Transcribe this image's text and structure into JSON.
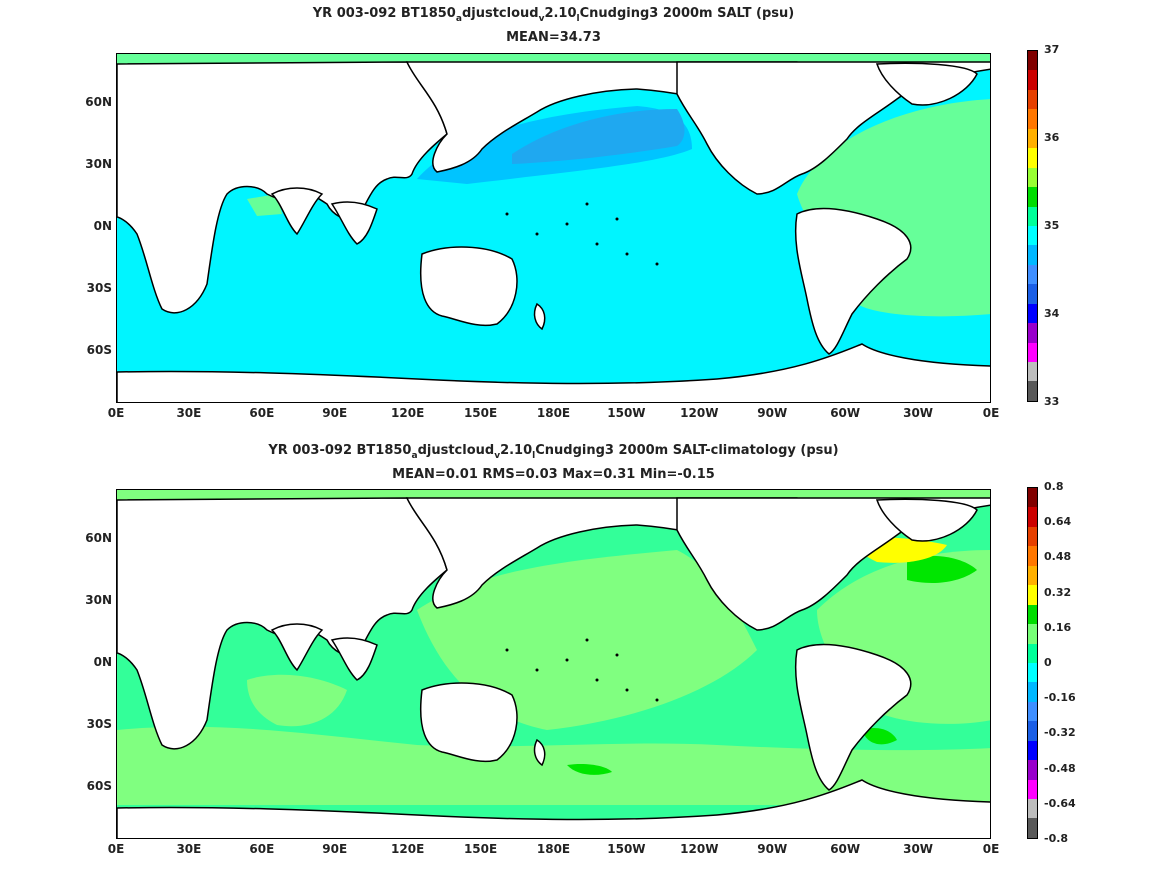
{
  "chart_data": [
    {
      "type": "heatmap",
      "title": {
        "prefix": "YR 003-092 BT1850",
        "s1": "a",
        "m1": "djustcloud",
        "s2": "v",
        "m2": "2.10",
        "s3": "l",
        "suffix": "Cnudging3 2000m SALT (psu)"
      },
      "subtitle": "MEAN=34.73",
      "x_ticks": [
        "0E",
        "30E",
        "60E",
        "90E",
        "120E",
        "150E",
        "180E",
        "150W",
        "120W",
        "90W",
        "60W",
        "30W",
        "0E"
      ],
      "y_ticks": [
        "60N",
        "30N",
        "0N",
        "30S",
        "60S"
      ],
      "colorbar": {
        "labels": [
          "37",
          "36",
          "35",
          "34",
          "33"
        ],
        "colors": [
          "#595959",
          "#bdbdbd",
          "#ff00ff",
          "#9900cc",
          "#0000ff",
          "#1b5fe6",
          "#3f8fff",
          "#00b8ff",
          "#00ffff",
          "#00ff99",
          "#00dd00",
          "#99ff33",
          "#ffff00",
          "#ffb000",
          "#ff7700",
          "#e64000",
          "#cc0000",
          "#800000"
        ]
      },
      "fields": {
        "ocean": "#00f5ff",
        "north_pacific": "#00c4ff",
        "north_pacific_core": "#1fa8f0",
        "atlantic": "#66ff99",
        "marginal": "#66ff99"
      }
    },
    {
      "type": "heatmap",
      "title": {
        "prefix": "YR 003-092 BT1850",
        "s1": "a",
        "m1": "djustcloud",
        "s2": "v",
        "m2": "2.10",
        "s3": "l",
        "suffix": "Cnudging3 2000m SALT-climatology (psu)"
      },
      "subtitle": "MEAN=0.01   RMS=0.03   Max=0.31   Min=-0.15",
      "x_ticks": [
        "0E",
        "30E",
        "60E",
        "90E",
        "120E",
        "150E",
        "180E",
        "150W",
        "120W",
        "90W",
        "60W",
        "30W",
        "0E"
      ],
      "y_ticks": [
        "60N",
        "30N",
        "0N",
        "30S",
        "60S"
      ],
      "colorbar": {
        "labels": [
          "0.8",
          "0.64",
          "0.48",
          "0.32",
          "0.16",
          "0",
          "-0.16",
          "-0.32",
          "-0.48",
          "-0.64",
          "-0.8"
        ],
        "colors": [
          "#595959",
          "#bdbdbd",
          "#ff00ff",
          "#9900cc",
          "#0000ff",
          "#1b5fe6",
          "#3f8fff",
          "#00b8ff",
          "#00ffff",
          "#00ff99",
          "#77ff77",
          "#00dd00",
          "#ffff00",
          "#ffb000",
          "#ff7700",
          "#e64000",
          "#cc0000",
          "#800000"
        ]
      },
      "fields": {
        "ocean": "#33ff99",
        "anomaly_pos": "#80ff80",
        "anomaly_strong": "#00e600",
        "anomaly_yellow": "#ffff00"
      }
    }
  ]
}
